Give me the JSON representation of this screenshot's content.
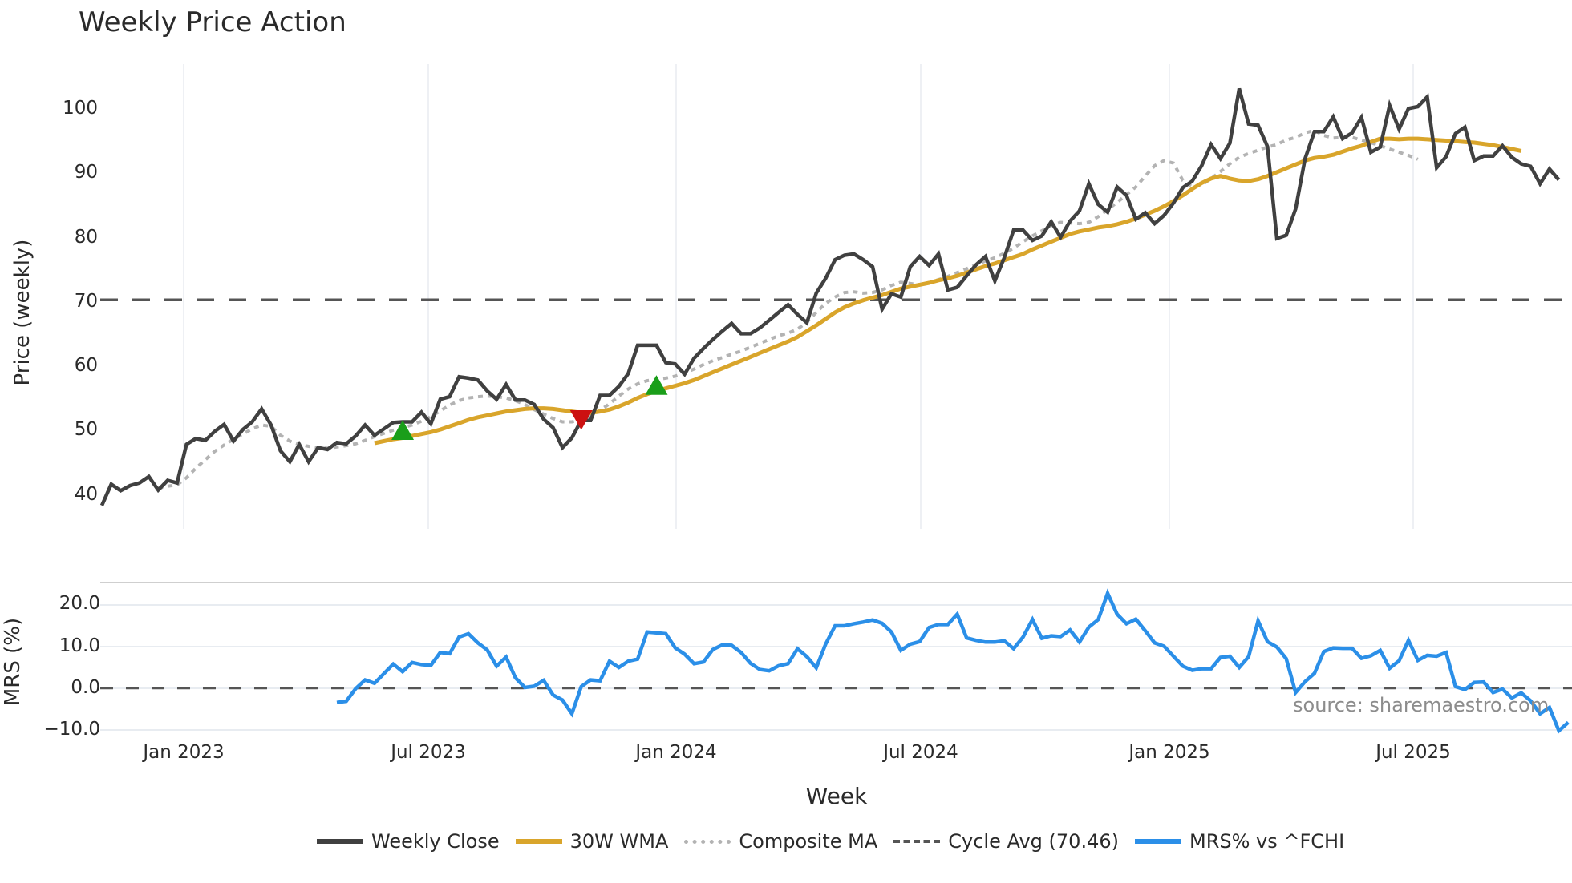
{
  "chart": {
    "title": "Weekly Price Action",
    "price_axis_label": "Price (weekly)",
    "mrs_axis_label": "MRS (%)",
    "x_axis_label": "Week",
    "source_note": "source: sharemaestro.com",
    "price_ticks": [
      "100",
      "90",
      "80",
      "70",
      "60",
      "50",
      "40"
    ],
    "mrs_ticks": [
      "20.0",
      "10.0",
      "0.0",
      "−10.0"
    ],
    "x_ticks": [
      "Jan 2023",
      "Jul 2023",
      "Jan 2024",
      "Jul 2024",
      "Jan 2025",
      "Jul 2025"
    ],
    "legend": [
      {
        "label": "Weekly Close",
        "color": "#404040",
        "style": "solid"
      },
      {
        "label": "30W WMA",
        "color": "#d9a52b",
        "style": "solid"
      },
      {
        "label": "Composite MA",
        "color": "#b3b3b3",
        "style": "dotted"
      },
      {
        "label": "Cycle Avg (70.46)",
        "color": "#555555",
        "style": "dashed"
      },
      {
        "label": "MRS% vs ^FCHI",
        "color": "#2b8fe8",
        "style": "solid"
      }
    ]
  },
  "chart_data": [
    {
      "type": "line",
      "title": "Weekly Price Action",
      "xlabel": "Week",
      "ylabel": "Price (weekly)",
      "ylim": [
        35,
        107
      ],
      "x_ticks": [
        "Jan 2023",
        "Jul 2023",
        "Jan 2024",
        "Jul 2024",
        "Jan 2025",
        "Jul 2025"
      ],
      "x_range": [
        "2022-11-07",
        "2025-11-03"
      ],
      "grid": true,
      "legend_position": "bottom",
      "reference_lines": [
        {
          "name": "Cycle Avg (70.46)",
          "y": 70.46,
          "style": "dashed",
          "color": "#555555"
        }
      ],
      "markers": [
        {
          "type": "buy",
          "shape": "triangle-up",
          "color": "#1a9e1a",
          "week_index": 32,
          "value": 50.0
        },
        {
          "type": "sell",
          "shape": "triangle-down",
          "color": "#cc1111",
          "week_index": 51,
          "value": 52.0
        },
        {
          "type": "buy",
          "shape": "triangle-up",
          "color": "#1a9e1a",
          "week_index": 59,
          "value": 57.0
        }
      ],
      "series": [
        {
          "name": "Weekly Close",
          "color": "#404040",
          "start_index": 0,
          "values": [
            38.5,
            41.8,
            40.8,
            41.6,
            42.0,
            43.0,
            40.9,
            42.4,
            42.0,
            48.0,
            48.9,
            48.6,
            50.0,
            51.1,
            48.5,
            50.3,
            51.5,
            53.5,
            51.0,
            47.0,
            45.3,
            48.0,
            45.3,
            47.5,
            47.2,
            48.3,
            48.1,
            49.3,
            51.0,
            49.4,
            50.4,
            51.4,
            51.5,
            51.5,
            53.0,
            51.2,
            55.0,
            55.4,
            58.5,
            58.3,
            58.0,
            56.3,
            55.0,
            57.3,
            54.9,
            54.9,
            54.2,
            51.9,
            50.6,
            47.5,
            49.0,
            51.7,
            51.7,
            55.6,
            55.6,
            57.0,
            59.0,
            63.4,
            63.4,
            63.4,
            60.7,
            60.5,
            58.9,
            61.4,
            62.9,
            64.3,
            65.6,
            66.8,
            65.2,
            65.2,
            66.1,
            67.3,
            68.5,
            69.7,
            68.2,
            66.9,
            71.5,
            73.8,
            76.7,
            77.4,
            77.6,
            76.7,
            75.6,
            69.0,
            71.4,
            70.9,
            75.6,
            77.2,
            75.8,
            77.6,
            72.0,
            72.4,
            74.2,
            75.9,
            77.2,
            73.4,
            77.0,
            81.3,
            81.3,
            79.7,
            80.4,
            82.6,
            80.2,
            82.7,
            84.3,
            88.5,
            85.3,
            84.1,
            88.0,
            86.7,
            83.0,
            84.0,
            82.3,
            83.6,
            85.5,
            87.9,
            88.9,
            91.3,
            94.6,
            92.4,
            94.8,
            103.3,
            97.8,
            97.6,
            94.3,
            80.0,
            80.5,
            84.6,
            92.4,
            96.6,
            96.6,
            98.9,
            95.5,
            96.4,
            98.8,
            93.4,
            94.2,
            100.7,
            97.0,
            100.2,
            100.5,
            102.0,
            91.0,
            92.7,
            96.3,
            97.3,
            92.1,
            92.8,
            92.8,
            94.4,
            92.6,
            91.6,
            91.2,
            88.5,
            90.8,
            89.1
          ]
        },
        {
          "name": "30W WMA",
          "color": "#d9a52b",
          "start_index": 29,
          "values": [
            48.2,
            48.5,
            48.8,
            49.0,
            49.3,
            49.6,
            49.9,
            50.3,
            50.8,
            51.3,
            51.8,
            52.2,
            52.5,
            52.8,
            53.1,
            53.3,
            53.5,
            53.6,
            53.6,
            53.5,
            53.3,
            53.1,
            52.9,
            52.9,
            53.1,
            53.4,
            53.9,
            54.5,
            55.2,
            55.8,
            56.3,
            56.7,
            57.1,
            57.5,
            58.0,
            58.6,
            59.2,
            59.8,
            60.4,
            61.0,
            61.6,
            62.2,
            62.8,
            63.4,
            64.0,
            64.7,
            65.6,
            66.5,
            67.5,
            68.5,
            69.3,
            69.9,
            70.4,
            70.8,
            71.2,
            71.7,
            72.2,
            72.5,
            72.8,
            73.1,
            73.5,
            73.8,
            74.2,
            74.7,
            75.2,
            75.7,
            76.1,
            76.6,
            77.1,
            77.6,
            78.3,
            78.9,
            79.5,
            80.1,
            80.7,
            81.1,
            81.4,
            81.7,
            81.9,
            82.2,
            82.6,
            83.1,
            83.7,
            84.3,
            85.0,
            85.8,
            86.7,
            87.7,
            88.6,
            89.3,
            89.7,
            89.3,
            89.0,
            88.9,
            89.2,
            89.7,
            90.3,
            90.9,
            91.5,
            92.1,
            92.5,
            92.7,
            93.0,
            93.5,
            94.0,
            94.4,
            95.0,
            95.5,
            95.5,
            95.4,
            95.5,
            95.5,
            95.4,
            95.3,
            95.2,
            95.1,
            95.0,
            94.9,
            94.7,
            94.5,
            94.2,
            93.9,
            93.6
          ]
        },
        {
          "name": "Composite MA",
          "color": "#b3b3b3",
          "start_index": 6,
          "values": [
            41.2,
            41.5,
            41.7,
            42.8,
            44.3,
            45.6,
            46.9,
            47.9,
            48.8,
            49.6,
            50.4,
            51.0,
            50.8,
            49.4,
            48.5,
            48.0,
            47.7,
            47.5,
            47.4,
            47.6,
            47.8,
            48.1,
            48.6,
            49.2,
            49.7,
            50.2,
            50.6,
            51.0,
            51.6,
            52.3,
            53.2,
            54.1,
            54.8,
            55.2,
            55.4,
            55.5,
            55.4,
            55.2,
            54.8,
            54.2,
            53.4,
            52.7,
            52.0,
            51.5,
            51.5,
            51.8,
            52.4,
            53.3,
            54.3,
            55.5,
            56.6,
            57.4,
            57.9,
            58.1,
            58.3,
            58.6,
            59.1,
            59.7,
            60.4,
            61.0,
            61.5,
            62.0,
            62.5,
            63.1,
            63.7,
            64.3,
            64.9,
            65.3,
            65.9,
            67.0,
            68.5,
            69.9,
            70.9,
            71.6,
            71.7,
            71.5,
            71.6,
            72.0,
            72.7,
            73.2,
            73.0,
            72.8,
            73.1,
            73.6,
            74.1,
            74.7,
            75.3,
            75.9,
            76.5,
            77.0,
            77.7,
            78.5,
            79.5,
            80.4,
            81.2,
            82.0,
            82.5,
            82.4,
            82.3,
            82.5,
            83.4,
            84.5,
            85.6,
            86.8,
            88.0,
            89.7,
            91.3,
            92.1,
            91.7,
            89.0,
            88.0,
            88.3,
            89.3,
            90.4,
            91.6,
            92.6,
            93.2,
            93.7,
            94.2,
            94.6,
            95.3,
            95.7,
            96.4,
            96.8,
            96.0,
            95.6,
            95.7,
            95.7,
            95.3,
            94.9,
            94.4,
            93.9,
            93.4,
            92.9,
            92.3
          ]
        }
      ]
    },
    {
      "type": "line",
      "title": "MRS% vs ^FCHI",
      "xlabel": "Week",
      "ylabel": "MRS (%)",
      "ylim": [
        -12,
        26
      ],
      "y_ticks": [
        20.0,
        10.0,
        0.0,
        -10.0
      ],
      "reference_lines": [
        {
          "y": 0.0,
          "style": "dashed",
          "color": "#555555"
        }
      ],
      "series": [
        {
          "name": "MRS% vs ^FCHI",
          "color": "#2b8fe8",
          "start_index": 25,
          "values": [
            -3.4,
            -3.1,
            -0.1,
            2.0,
            1.2,
            3.5,
            5.8,
            4.0,
            6.2,
            5.7,
            5.5,
            8.6,
            8.3,
            12.3,
            13.1,
            10.9,
            9.2,
            5.3,
            7.5,
            2.5,
            0.2,
            0.5,
            1.9,
            -1.6,
            -2.8,
            -6.1,
            0.4,
            2.0,
            1.8,
            6.5,
            5.0,
            6.5,
            7.0,
            13.5,
            13.3,
            13.1,
            9.7,
            8.2,
            5.9,
            6.3,
            9.3,
            10.4,
            10.3,
            8.6,
            6.0,
            4.5,
            4.2,
            5.4,
            5.9,
            9.5,
            7.6,
            4.9,
            10.6,
            15.0,
            15.0,
            15.5,
            15.9,
            16.4,
            15.6,
            13.5,
            9.1,
            10.6,
            11.2,
            14.6,
            15.3,
            15.3,
            17.8,
            12.1,
            11.5,
            11.1,
            11.1,
            11.4,
            9.5,
            12.3,
            16.5,
            12.0,
            12.6,
            12.4,
            14.0,
            11.1,
            14.7,
            16.5,
            22.8,
            17.8,
            15.5,
            16.6,
            13.8,
            10.9,
            10.1,
            7.7,
            5.3,
            4.3,
            4.7,
            4.7,
            7.4,
            7.7,
            5.0,
            7.6,
            16.2,
            11.2,
            9.9,
            7.1,
            -1.0,
            1.6,
            3.6,
            8.8,
            9.7,
            9.6,
            9.6,
            7.2,
            7.8,
            9.1,
            4.8,
            6.6,
            11.5,
            6.7,
            7.9,
            7.7,
            8.6,
            0.4,
            -0.3,
            1.4,
            1.5,
            -1.0,
            -0.2,
            -2.3,
            -1.1,
            -3.0,
            -6.1,
            -4.6,
            -10.2,
            -8.2,
            -9.4
          ]
        }
      ]
    }
  ]
}
